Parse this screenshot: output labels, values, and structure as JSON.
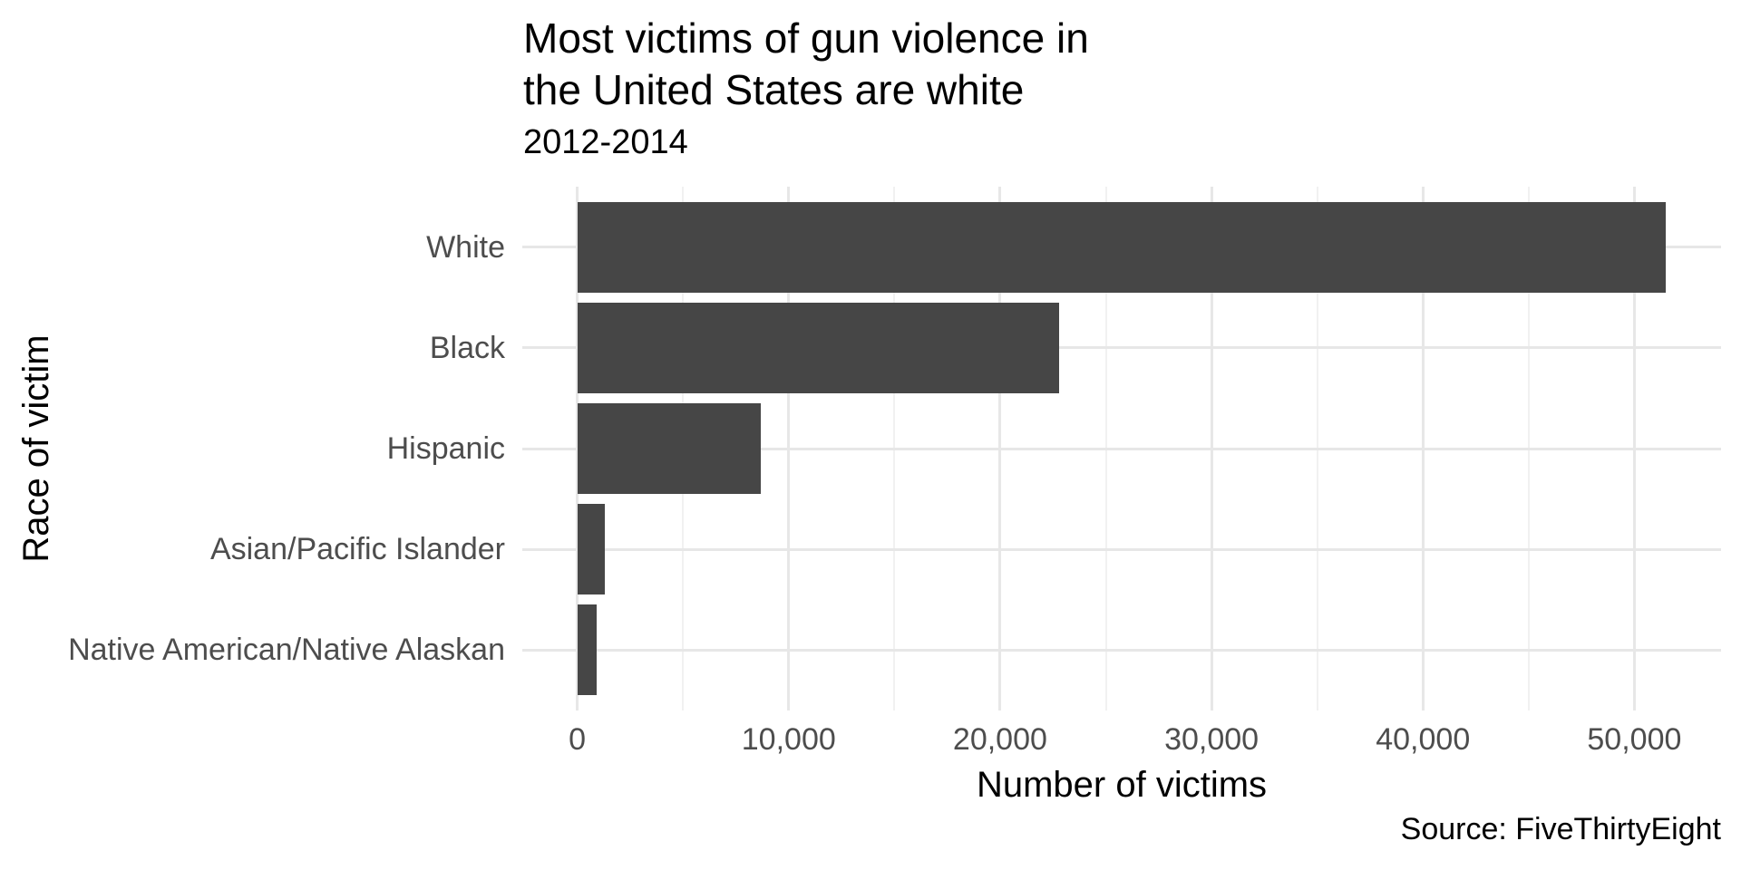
{
  "chart_data": {
    "type": "bar",
    "orientation": "horizontal",
    "title": "Most victims of gun violence in\nthe United States are white",
    "subtitle": "2012-2014",
    "caption": "Source: FiveThirtyEight",
    "xlabel": "Number of victims",
    "ylabel": "Race of victim",
    "categories": [
      "White",
      "Black",
      "Hispanic",
      "Asian/Pacific Islander",
      "Native American/Native Alaskan"
    ],
    "values": [
      51500,
      22800,
      8700,
      1300,
      900
    ],
    "x_ticks": [
      0,
      10000,
      20000,
      30000,
      40000,
      50000
    ],
    "x_tick_labels": [
      "0",
      "10,000",
      "20,000",
      "30,000",
      "40,000",
      "50,000"
    ],
    "x_minor_ticks": [
      5000,
      15000,
      25000,
      35000,
      45000
    ],
    "xlim": [
      -2600,
      54100
    ],
    "grid": "major and minor vertical, major horizontal",
    "legend": "none",
    "bar_color": "#464646",
    "grid_major_color": "#e7e7e7",
    "grid_minor_color": "#f1f1f1",
    "axis_text_color": "#4d4d4d",
    "text_color": "#000000",
    "background_color": "#ffffff"
  }
}
